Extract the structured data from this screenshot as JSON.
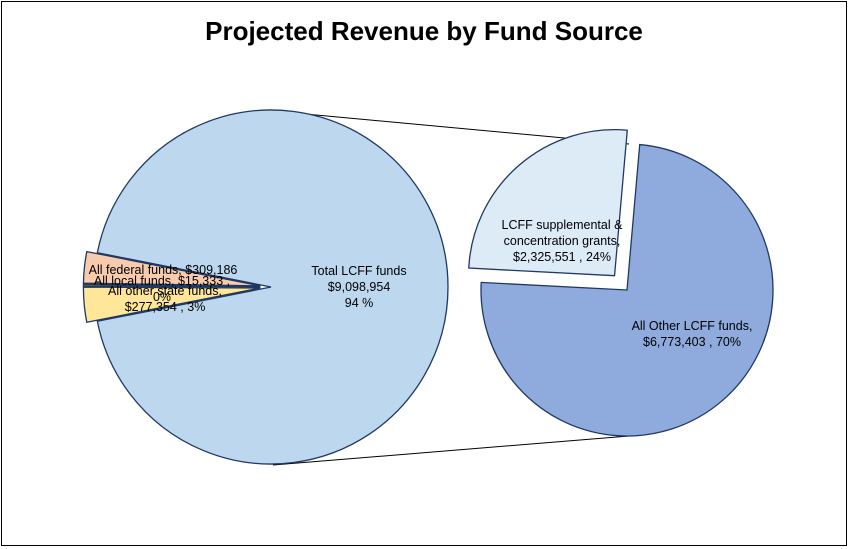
{
  "chart_data": {
    "type": "pie",
    "subtype": "pie-of-pie",
    "title": "Projected Revenue by Fund Source",
    "main_pie": {
      "slices": [
        {
          "key": "federal",
          "values": 309186,
          "lines": [
            "All federal funds, $309,186"
          ],
          "color": "#FFE699"
        },
        {
          "key": "local",
          "values": 15333,
          "lines": [
            "All local funds, $15,333 ,",
            "0%"
          ],
          "color": "#BF9000"
        },
        {
          "key": "other_state",
          "values": 277354,
          "lines": [
            "All other state funds,",
            "$277,354 , 3%"
          ],
          "color": "#F8CBAD"
        },
        {
          "key": "lcff",
          "values": 9098954,
          "lines": [
            "Total LCFF funds",
            "$9,098,954",
            "94 %"
          ],
          "color": "#BDD7EE"
        }
      ]
    },
    "secondary_pie": {
      "parent": "lcff",
      "slices": [
        {
          "key": "supplemental",
          "values": 2325551,
          "lines": [
            "LCFF supplemental &",
            "concentration grants,",
            "$2,325,551 , 24%"
          ],
          "color": "#DDEBF7"
        },
        {
          "key": "other_lcff",
          "values": 6773403,
          "lines": [
            "All Other LCFF funds,",
            "$6,773,403 , 70%"
          ],
          "color": "#8FAADC"
        }
      ]
    },
    "outline_color": "#1F3864",
    "legend": "none"
  }
}
